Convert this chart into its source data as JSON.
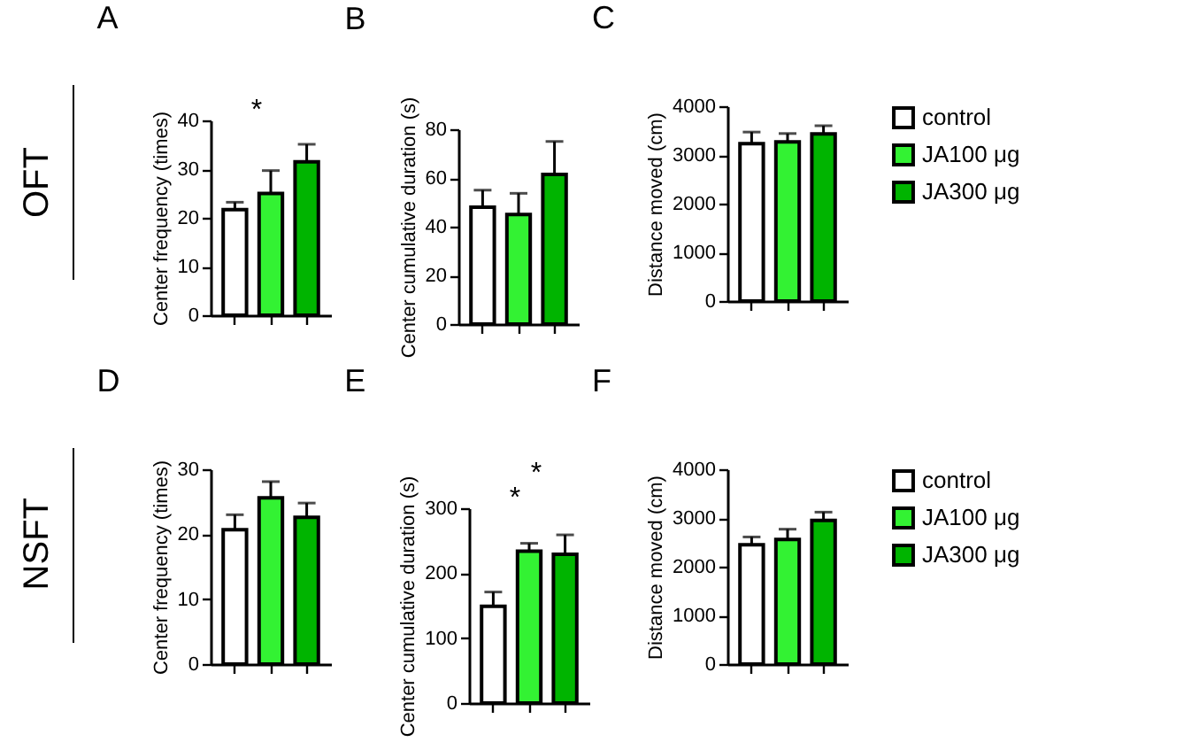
{
  "chart_data": [
    {
      "type": "other",
      "title": "OFT"
    },
    {
      "type": "bar",
      "title": "A",
      "ylabel": "Center frequency (times)",
      "categories": [
        null,
        null,
        null
      ],
      "ylim": [
        0,
        40
      ],
      "yticks": [
        0,
        10,
        20,
        30,
        40
      ],
      "annotations": [
        "*"
      ],
      "series": [
        {
          "color": "#ffffff",
          "values": [
            21.7,
            null,
            null
          ],
          "errors": [
            [
              21.7,
              23.2
            ],
            null,
            null
          ]
        },
        {
          "color": "#33f233",
          "values": [
            null,
            25,
            null
          ],
          "errors": [
            null,
            [
              25,
              29.7
            ],
            null
          ]
        },
        {
          "color": "#00b400",
          "values": [
            null,
            null,
            31.5
          ],
          "errors": [
            null,
            null,
            [
              31.5,
              35.1
            ]
          ]
        }
      ]
    },
    {
      "type": "bar",
      "title": "B",
      "ylabel": "Center cumulative duration (s)",
      "categories": [
        null,
        null,
        null
      ],
      "ylim": [
        0,
        80
      ],
      "yticks": [
        0,
        20,
        40,
        60,
        80
      ],
      "series": [
        {
          "color": "#ffffff",
          "values": [
            48,
            null,
            null
          ],
          "errors": [
            [
              48,
              55
            ],
            null,
            null
          ]
        },
        {
          "color": "#33f233",
          "values": [
            null,
            45,
            null
          ],
          "errors": [
            null,
            [
              45,
              53.7
            ],
            null
          ]
        },
        {
          "color": "#00b400",
          "values": [
            null,
            null,
            61.5
          ],
          "errors": [
            null,
            null,
            [
              61.5,
              75
            ]
          ]
        }
      ]
    },
    {
      "type": "bar",
      "title": "C",
      "ylabel": "Distance moved (cm)",
      "categories": [
        null,
        null,
        null
      ],
      "ylim": [
        0,
        4000
      ],
      "yticks": [
        0,
        1000,
        2000,
        3000,
        4000
      ],
      "legend": "right",
      "series": [
        {
          "name": "control",
          "color": "#ffffff",
          "values": [
            3230,
            null,
            null
          ],
          "errors": [
            [
              3230,
              3470
            ],
            null,
            null
          ]
        },
        {
          "name": "JA100 μg",
          "color": "#33f233",
          "values": [
            null,
            3270,
            null
          ],
          "errors": [
            null,
            [
              3270,
              3440
            ],
            null
          ]
        },
        {
          "name": "JA300 μg",
          "color": "#00b400",
          "values": [
            null,
            null,
            3430
          ],
          "errors": [
            null,
            null,
            [
              3430,
              3600
            ]
          ]
        }
      ]
    },
    {
      "type": "other",
      "title": "NSFT"
    },
    {
      "type": "bar",
      "title": "D",
      "ylabel": "Center frequency (times)",
      "categories": [
        null,
        null,
        null
      ],
      "ylim": [
        0,
        30
      ],
      "yticks": [
        0,
        10,
        20,
        30
      ],
      "series": [
        {
          "color": "#ffffff",
          "values": [
            20.7,
            null,
            null
          ],
          "errors": [
            [
              20.7,
              23
            ],
            null,
            null
          ]
        },
        {
          "color": "#33f233",
          "values": [
            null,
            25.6,
            null
          ],
          "errors": [
            null,
            [
              25.6,
              28.1
            ],
            null
          ]
        },
        {
          "color": "#00b400",
          "values": [
            null,
            null,
            22.6
          ],
          "errors": [
            null,
            null,
            [
              22.6,
              24.8
            ]
          ]
        }
      ]
    },
    {
      "type": "bar",
      "title": "E",
      "ylabel": "Center cumulative duration (s)",
      "categories": [
        null,
        null,
        null
      ],
      "ylim": [
        0,
        300
      ],
      "yticks": [
        0,
        100,
        200,
        300
      ],
      "annotations": [
        "*",
        "*"
      ],
      "series": [
        {
          "color": "#ffffff",
          "values": [
            149,
            null,
            null
          ],
          "errors": [
            [
              149,
              171
            ],
            null,
            null
          ]
        },
        {
          "color": "#33f233",
          "values": [
            null,
            234,
            null
          ],
          "errors": [
            null,
            [
              234,
              246
            ],
            null
          ]
        },
        {
          "color": "#00b400",
          "values": [
            null,
            null,
            229
          ],
          "errors": [
            null,
            null,
            [
              229,
              259
            ]
          ]
        }
      ]
    },
    {
      "type": "bar",
      "title": "F",
      "ylabel": "Distance moved (cm)",
      "categories": [
        null,
        null,
        null
      ],
      "ylim": [
        0,
        4000
      ],
      "yticks": [
        0,
        1000,
        2000,
        3000,
        4000
      ],
      "legend": "right",
      "series": [
        {
          "name": "control",
          "color": "#ffffff",
          "values": [
            2450,
            null,
            null
          ],
          "errors": [
            [
              2450,
              2610
            ],
            null,
            null
          ]
        },
        {
          "name": "JA100 μg",
          "color": "#33f233",
          "values": [
            null,
            2560,
            null
          ],
          "errors": [
            null,
            [
              2560,
              2770
            ],
            null
          ]
        },
        {
          "name": "JA300 μg",
          "color": "#00b400",
          "values": [
            null,
            null,
            2950
          ],
          "errors": [
            null,
            null,
            [
              2950,
              3120
            ]
          ]
        }
      ]
    }
  ]
}
